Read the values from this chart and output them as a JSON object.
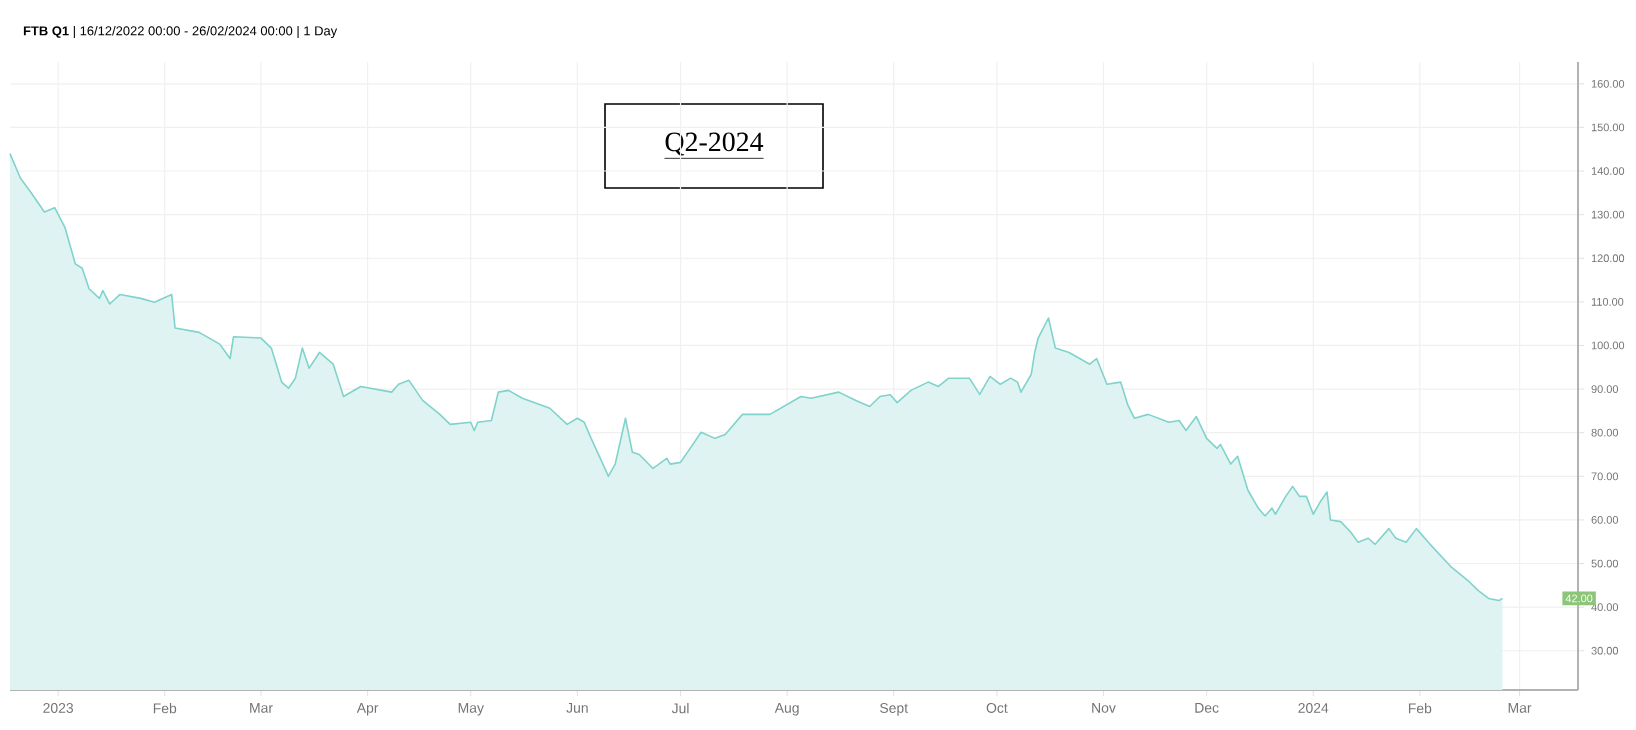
{
  "chart_data": {
    "type": "area",
    "title": "**FTB Q1** | 16/12/2022 00:00 - 26/02/2024 00:00 | 1 Day",
    "annotations": [
      "Q2-2024",
      "42.00"
    ],
    "x": [
      "2022-12-18",
      "2022-12-21",
      "2022-12-24",
      "2022-12-28",
      "2022-12-31",
      "2023-01-03",
      "2023-01-06",
      "2023-01-08",
      "2023-01-10",
      "2023-01-13",
      "2023-01-14",
      "2023-01-16",
      "2023-01-19",
      "2023-01-25",
      "2023-01-29",
      "2023-02-03",
      "2023-02-04",
      "2023-02-11",
      "2023-02-17",
      "2023-02-20",
      "2023-02-21",
      "2023-03-01",
      "2023-03-04",
      "2023-03-07",
      "2023-03-09",
      "2023-03-11",
      "2023-03-13",
      "2023-03-15",
      "2023-03-18",
      "2023-03-22",
      "2023-03-25",
      "2023-03-30",
      "2023-04-08",
      "2023-04-10",
      "2023-04-13",
      "2023-04-17",
      "2023-04-22",
      "2023-04-25",
      "2023-05-01",
      "2023-05-02",
      "2023-05-03",
      "2023-05-07",
      "2023-05-09",
      "2023-05-12",
      "2023-05-16",
      "2023-05-24",
      "2023-05-29",
      "2023-06-01",
      "2023-06-03",
      "2023-06-05",
      "2023-06-09",
      "2023-06-10",
      "2023-06-12",
      "2023-06-15",
      "2023-06-17",
      "2023-06-19",
      "2023-06-23",
      "2023-06-27",
      "2023-06-28",
      "2023-07-01",
      "2023-07-07",
      "2023-07-11",
      "2023-07-14",
      "2023-07-19",
      "2023-07-27",
      "2023-08-05",
      "2023-08-08",
      "2023-08-16",
      "2023-08-21",
      "2023-08-25",
      "2023-08-28",
      "2023-08-31",
      "2023-09-02",
      "2023-09-06",
      "2023-09-11",
      "2023-09-14",
      "2023-09-17",
      "2023-09-23",
      "2023-09-26",
      "2023-09-29",
      "2023-10-02",
      "2023-10-05",
      "2023-10-07",
      "2023-10-08",
      "2023-10-11",
      "2023-10-12",
      "2023-10-13",
      "2023-10-16",
      "2023-10-18",
      "2023-10-22",
      "2023-10-28",
      "2023-10-30",
      "2023-11-02",
      "2023-11-06",
      "2023-11-08",
      "2023-11-10",
      "2023-11-14",
      "2023-11-20",
      "2023-11-23",
      "2023-11-25",
      "2023-11-28",
      "2023-12-01",
      "2023-12-04",
      "2023-12-05",
      "2023-12-08",
      "2023-12-10",
      "2023-12-13",
      "2023-12-16",
      "2023-12-18",
      "2023-12-20",
      "2023-12-21",
      "2023-12-24",
      "2023-12-26",
      "2023-12-28",
      "2023-12-30",
      "2024-01-01",
      "2024-01-03",
      "2024-01-05",
      "2024-01-06",
      "2024-01-09",
      "2024-01-12",
      "2024-01-14",
      "2024-01-17",
      "2024-01-19",
      "2024-01-23",
      "2024-01-25",
      "2024-01-28",
      "2024-01-31",
      "2024-02-04",
      "2024-02-10",
      "2024-02-15",
      "2024-02-18",
      "2024-02-21",
      "2024-02-24",
      "2024-02-25"
    ],
    "series": [
      {
        "color": "#7fd3cc",
        "values": [
          144,
          138.4,
          135.2,
          130.6,
          131.6,
          127,
          118.7,
          117.7,
          113,
          110.8,
          112.6,
          109.5,
          111.7,
          110.8,
          109.9,
          111.7,
          104,
          103,
          100.3,
          97,
          102,
          101.7,
          99.4,
          91.6,
          90.2,
          92.5,
          99.4,
          94.8,
          98.4,
          95.7,
          88.3,
          90.6,
          89.3,
          91.1,
          92,
          87.4,
          84.2,
          81.9,
          82.4,
          80.5,
          82.4,
          82.8,
          89.3,
          89.7,
          87.9,
          85.6,
          81.9,
          83.3,
          82.4,
          78.7,
          71.8,
          70,
          72.8,
          83.3,
          75.5,
          75,
          71.8,
          74.1,
          72.8,
          73.2,
          80.1,
          78.7,
          79.6,
          84.2,
          84.2,
          88.3,
          87.9,
          89.3,
          87.4,
          86,
          88.3,
          88.7,
          86.9,
          89.7,
          91.6,
          90.6,
          92.5,
          92.5,
          88.8,
          92.9,
          91.1,
          92.5,
          91.6,
          89.3,
          93.4,
          98.4,
          101.7,
          106.3,
          99.4,
          98.4,
          95.7,
          97,
          91.1,
          91.6,
          86.5,
          83.3,
          84.2,
          82.4,
          82.8,
          80.5,
          83.7,
          78.7,
          76.4,
          77.3,
          72.8,
          74.6,
          66.8,
          62.7,
          60.9,
          62.7,
          61.3,
          65.4,
          67.7,
          65.4,
          65.4,
          61.3,
          64.1,
          66.4,
          60,
          59.6,
          57.1,
          54.9,
          55.8,
          54.4,
          58,
          55.8,
          54.9,
          58,
          54.4,
          49.3,
          46.1,
          43.8,
          42,
          41.5,
          42
        ]
      }
    ],
    "xlim": [
      "2022-12-18",
      "2024-03-18"
    ],
    "xticks": [
      {
        "value": "2023-01-01",
        "label": "2023"
      },
      {
        "value": "2023-02-01",
        "label": "Feb"
      },
      {
        "value": "2023-03-01",
        "label": "Mar"
      },
      {
        "value": "2023-04-01",
        "label": "Apr"
      },
      {
        "value": "2023-05-01",
        "label": "May"
      },
      {
        "value": "2023-06-01",
        "label": "Jun"
      },
      {
        "value": "2023-07-01",
        "label": "Jul"
      },
      {
        "value": "2023-08-01",
        "label": "Aug"
      },
      {
        "value": "2023-09-01",
        "label": "Sept"
      },
      {
        "value": "2023-10-01",
        "label": "Oct"
      },
      {
        "value": "2023-11-01",
        "label": "Nov"
      },
      {
        "value": "2023-12-01",
        "label": "Dec"
      },
      {
        "value": "2024-01-01",
        "label": "2024"
      },
      {
        "value": "2024-02-01",
        "label": "Feb"
      },
      {
        "value": "2024-03-01",
        "label": "Mar"
      }
    ],
    "ylim": [
      21,
      165
    ],
    "yticks": [
      {
        "value": 30,
        "label": "30.00"
      },
      {
        "value": 40,
        "label": "40.00"
      },
      {
        "value": 50,
        "label": "50.00"
      },
      {
        "value": 60,
        "label": "60.00"
      },
      {
        "value": 70,
        "label": "70.00"
      },
      {
        "value": 80,
        "label": "80.00"
      },
      {
        "value": 90,
        "label": "90.00"
      },
      {
        "value": 100,
        "label": "100.00"
      },
      {
        "value": 110,
        "label": "110.00"
      },
      {
        "value": 120,
        "label": "120.00"
      },
      {
        "value": 130,
        "label": "130.00"
      },
      {
        "value": 140,
        "label": "140.00"
      },
      {
        "value": 150,
        "label": "150.00"
      },
      {
        "value": 160,
        "label": "160.00"
      }
    ],
    "grid": true
  }
}
